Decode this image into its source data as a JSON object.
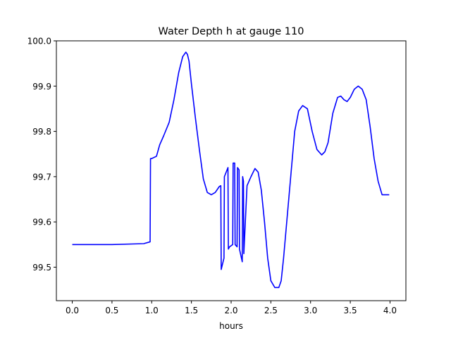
{
  "chart_data": {
    "type": "line",
    "title": "Water Depth h at gauge 110",
    "xlabel": "hours",
    "ylabel": "",
    "xlim": [
      -0.2,
      4.2
    ],
    "ylim": [
      99.426,
      100.0
    ],
    "xticks": [
      0.0,
      0.5,
      1.0,
      1.5,
      2.0,
      2.5,
      3.0,
      3.5,
      4.0
    ],
    "xtick_labels": [
      "0.0",
      "0.5",
      "1.0",
      "1.5",
      "2.0",
      "2.5",
      "3.0",
      "3.5",
      "4.0"
    ],
    "yticks": [
      99.5,
      99.6,
      99.7,
      99.8,
      99.9,
      100.0
    ],
    "ytick_labels": [
      "99.5",
      "99.6",
      "99.7",
      "99.8",
      "99.9",
      "100.0"
    ],
    "grid": false,
    "series": [
      {
        "color": "#0000ff",
        "x": [
          0.0,
          0.5,
          0.9,
          0.98,
          0.985,
          1.0,
          1.06,
          1.1,
          1.15,
          1.22,
          1.28,
          1.34,
          1.39,
          1.43,
          1.45,
          1.47,
          1.5,
          1.55,
          1.6,
          1.65,
          1.7,
          1.75,
          1.8,
          1.85,
          1.87,
          1.875,
          1.91,
          1.915,
          1.96,
          1.965,
          1.98,
          2.02,
          2.025,
          2.045,
          2.05,
          2.075,
          2.08,
          2.1,
          2.105,
          2.13,
          2.14,
          2.145,
          2.155,
          2.16,
          2.2,
          2.25,
          2.3,
          2.34,
          2.38,
          2.42,
          2.46,
          2.5,
          2.55,
          2.6,
          2.63,
          2.66,
          2.7,
          2.75,
          2.8,
          2.85,
          2.9,
          2.96,
          3.02,
          3.08,
          3.14,
          3.18,
          3.22,
          3.28,
          3.34,
          3.38,
          3.42,
          3.46,
          3.5,
          3.55,
          3.6,
          3.65,
          3.7,
          3.75,
          3.8,
          3.85,
          3.9,
          3.95,
          3.99
        ],
        "y": [
          99.55,
          99.55,
          99.552,
          99.556,
          99.74,
          99.74,
          99.745,
          99.77,
          99.79,
          99.82,
          99.87,
          99.93,
          99.965,
          99.975,
          99.97,
          99.955,
          99.905,
          99.83,
          99.76,
          99.695,
          99.665,
          99.66,
          99.665,
          99.678,
          99.68,
          99.495,
          99.52,
          99.7,
          99.72,
          99.54,
          99.545,
          99.55,
          99.73,
          99.73,
          99.55,
          99.545,
          99.72,
          99.715,
          99.54,
          99.52,
          99.512,
          99.7,
          99.69,
          99.53,
          99.68,
          99.7,
          99.718,
          99.71,
          99.67,
          99.6,
          99.52,
          99.47,
          99.455,
          99.455,
          99.47,
          99.52,
          99.6,
          99.7,
          99.8,
          99.845,
          99.857,
          99.85,
          99.8,
          99.76,
          99.748,
          99.755,
          99.775,
          99.84,
          99.875,
          99.878,
          99.87,
          99.866,
          99.875,
          99.893,
          99.9,
          99.893,
          99.87,
          99.81,
          99.74,
          99.69,
          99.66,
          99.66,
          99.66
        ]
      }
    ]
  }
}
